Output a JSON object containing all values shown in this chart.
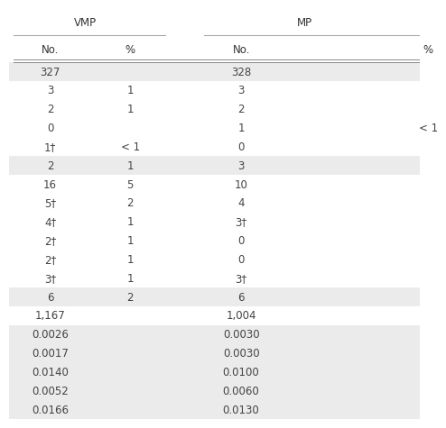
{
  "col_headers_top": [
    "VMP",
    "MP"
  ],
  "col_headers_sub": [
    "No.",
    "%",
    "No.",
    "%"
  ],
  "rows": [
    {
      "cells": [
        "327",
        "",
        "328",
        ""
      ],
      "shaded": true
    },
    {
      "cells": [
        "3",
        "1",
        "3",
        ""
      ],
      "shaded": false
    },
    {
      "cells": [
        "2",
        "1",
        "2",
        ""
      ],
      "shaded": false
    },
    {
      "cells": [
        "0",
        "",
        "1",
        "< 1"
      ],
      "shaded": false
    },
    {
      "cells": [
        "1†",
        "< 1",
        "0",
        ""
      ],
      "shaded": false
    },
    {
      "cells": [
        "2",
        "1",
        "3",
        ""
      ],
      "shaded": true
    },
    {
      "cells": [
        "16",
        "5",
        "10",
        ""
      ],
      "shaded": false
    },
    {
      "cells": [
        "5†",
        "2",
        "4",
        ""
      ],
      "shaded": false
    },
    {
      "cells": [
        "4†",
        "1",
        "3†",
        ""
      ],
      "shaded": false
    },
    {
      "cells": [
        "2†",
        "1",
        "0",
        ""
      ],
      "shaded": false
    },
    {
      "cells": [
        "2†",
        "1",
        "0",
        ""
      ],
      "shaded": false
    },
    {
      "cells": [
        "3†",
        "1",
        "3†",
        ""
      ],
      "shaded": false
    },
    {
      "cells": [
        "6",
        "2",
        "6",
        ""
      ],
      "shaded": true
    },
    {
      "cells": [
        "1,167",
        "",
        "1,004",
        ""
      ],
      "shaded": false
    },
    {
      "cells": [
        "0.0026",
        "",
        "0.0030",
        ""
      ],
      "shaded": true
    },
    {
      "cells": [
        "0.0017",
        "",
        "0.0030",
        ""
      ],
      "shaded": true
    },
    {
      "cells": [
        "0.0140",
        "",
        "0.0100",
        ""
      ],
      "shaded": true
    },
    {
      "cells": [
        "0.0052",
        "",
        "0.0060",
        ""
      ],
      "shaded": true
    },
    {
      "cells": [
        "0.0166",
        "",
        "0.0130",
        ""
      ],
      "shaded": true
    }
  ],
  "shaded_color": "#ebebeb",
  "white_color": "#ffffff",
  "text_color": "#444444",
  "font_size": 8.5,
  "header_font_size": 8.5
}
